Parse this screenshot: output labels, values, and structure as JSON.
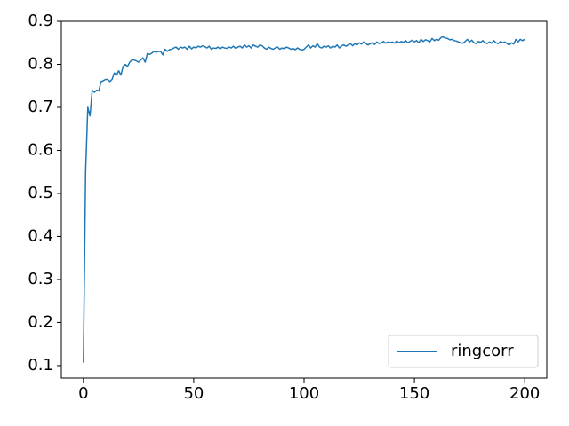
{
  "chart_data": {
    "type": "line",
    "x": [
      0,
      1,
      2,
      3,
      4,
      5,
      6,
      7,
      8,
      9,
      10,
      11,
      12,
      13,
      14,
      15,
      16,
      17,
      18,
      19,
      20,
      21,
      22,
      23,
      24,
      25,
      26,
      27,
      28,
      29,
      30,
      31,
      32,
      33,
      34,
      35,
      36,
      37,
      38,
      39,
      40,
      41,
      42,
      43,
      44,
      45,
      46,
      47,
      48,
      49,
      50,
      51,
      52,
      53,
      54,
      55,
      56,
      57,
      58,
      59,
      60,
      61,
      62,
      63,
      64,
      65,
      66,
      67,
      68,
      69,
      70,
      71,
      72,
      73,
      74,
      75,
      76,
      77,
      78,
      79,
      80,
      81,
      82,
      83,
      84,
      85,
      86,
      87,
      88,
      89,
      90,
      91,
      92,
      93,
      94,
      95,
      96,
      97,
      98,
      99,
      100,
      101,
      102,
      103,
      104,
      105,
      106,
      107,
      108,
      109,
      110,
      111,
      112,
      113,
      114,
      115,
      116,
      117,
      118,
      119,
      120,
      121,
      122,
      123,
      124,
      125,
      126,
      127,
      128,
      129,
      130,
      131,
      132,
      133,
      134,
      135,
      136,
      137,
      138,
      139,
      140,
      141,
      142,
      143,
      144,
      145,
      146,
      147,
      148,
      149,
      150,
      151,
      152,
      153,
      154,
      155,
      156,
      157,
      158,
      159,
      160,
      161,
      162,
      163,
      164,
      165,
      166,
      167,
      168,
      169,
      170,
      171,
      172,
      173,
      174,
      175,
      176,
      177,
      178,
      179,
      180,
      181,
      182,
      183,
      184,
      185,
      186,
      187,
      188,
      189,
      190,
      191,
      192,
      193,
      194,
      195,
      196,
      197,
      198,
      199,
      200
    ],
    "series": [
      {
        "name": "ringcorr",
        "color": "#1f77b4",
        "values": [
          0.107,
          0.55,
          0.7,
          0.68,
          0.74,
          0.735,
          0.74,
          0.738,
          0.76,
          0.762,
          0.765,
          0.765,
          0.76,
          0.765,
          0.78,
          0.775,
          0.785,
          0.775,
          0.795,
          0.8,
          0.795,
          0.805,
          0.81,
          0.81,
          0.808,
          0.805,
          0.81,
          0.815,
          0.805,
          0.825,
          0.823,
          0.826,
          0.83,
          0.828,
          0.83,
          0.83,
          0.822,
          0.835,
          0.83,
          0.834,
          0.835,
          0.838,
          0.84,
          0.835,
          0.84,
          0.838,
          0.84,
          0.835,
          0.842,
          0.836,
          0.84,
          0.838,
          0.842,
          0.84,
          0.843,
          0.841,
          0.838,
          0.842,
          0.835,
          0.838,
          0.837,
          0.84,
          0.836,
          0.84,
          0.838,
          0.837,
          0.84,
          0.838,
          0.842,
          0.837,
          0.84,
          0.842,
          0.838,
          0.845,
          0.84,
          0.843,
          0.838,
          0.845,
          0.842,
          0.84,
          0.845,
          0.843,
          0.838,
          0.835,
          0.84,
          0.837,
          0.835,
          0.838,
          0.84,
          0.835,
          0.838,
          0.836,
          0.84,
          0.838,
          0.835,
          0.837,
          0.834,
          0.838,
          0.835,
          0.833,
          0.835,
          0.84,
          0.845,
          0.838,
          0.843,
          0.84,
          0.848,
          0.84,
          0.838,
          0.842,
          0.84,
          0.843,
          0.838,
          0.842,
          0.84,
          0.845,
          0.838,
          0.843,
          0.845,
          0.842,
          0.845,
          0.848,
          0.843,
          0.848,
          0.845,
          0.85,
          0.847,
          0.852,
          0.848,
          0.845,
          0.848,
          0.85,
          0.846,
          0.852,
          0.848,
          0.85,
          0.853,
          0.849,
          0.852,
          0.85,
          0.852,
          0.849,
          0.854,
          0.85,
          0.853,
          0.851,
          0.855,
          0.85,
          0.853,
          0.856,
          0.852,
          0.855,
          0.85,
          0.858,
          0.853,
          0.857,
          0.855,
          0.852,
          0.86,
          0.855,
          0.858,
          0.856,
          0.862,
          0.864,
          0.861,
          0.86,
          0.857,
          0.858,
          0.855,
          0.854,
          0.852,
          0.85,
          0.849,
          0.853,
          0.858,
          0.852,
          0.856,
          0.85,
          0.848,
          0.853,
          0.851,
          0.855,
          0.85,
          0.848,
          0.852,
          0.849,
          0.855,
          0.85,
          0.848,
          0.853,
          0.85,
          0.852,
          0.848,
          0.845,
          0.85,
          0.847,
          0.858,
          0.852,
          0.858,
          0.855,
          0.858
        ]
      }
    ],
    "xlim": [
      -10,
      210
    ],
    "xticks": [
      0,
      50,
      100,
      150,
      200
    ],
    "ylim": [
      0.071,
      0.9
    ],
    "yticks": [
      0.1,
      0.2,
      0.3,
      0.4,
      0.5,
      0.6,
      0.7,
      0.8,
      0.9
    ],
    "legend": "lower right"
  }
}
